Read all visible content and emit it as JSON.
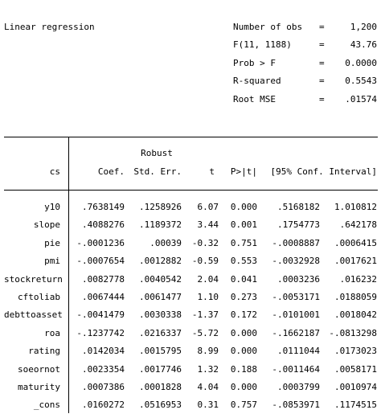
{
  "title": "Linear regression",
  "stats": [
    {
      "label": "Number of obs",
      "eq": "=",
      "value": "1,200"
    },
    {
      "label": "F(11, 1188)",
      "eq": "=",
      "value": "43.76"
    },
    {
      "label": "Prob > F",
      "eq": "=",
      "value": "0.0000"
    },
    {
      "label": "R-squared",
      "eq": "=",
      "value": "0.5543"
    },
    {
      "label": "Root MSE",
      "eq": "=",
      "value": ".01574"
    }
  ],
  "table": {
    "depvar": "cs",
    "robust_label": "Robust",
    "headers": [
      "Coef.",
      "Std. Err.",
      "t",
      "P>|t|",
      "[95% Conf. Interval]"
    ],
    "rows": [
      {
        "name": "y10",
        "coef": ".7638149",
        "se": ".1258926",
        "t": "6.07",
        "p": "0.000",
        "lo": ".5168182",
        "hi": "1.010812"
      },
      {
        "name": "slope",
        "coef": ".4088276",
        "se": ".1189372",
        "t": "3.44",
        "p": "0.001",
        "lo": ".1754773",
        "hi": ".642178"
      },
      {
        "name": "pie",
        "coef": "-.0001236",
        "se": ".00039",
        "t": "-0.32",
        "p": "0.751",
        "lo": "-.0008887",
        "hi": ".0006415"
      },
      {
        "name": "pmi",
        "coef": "-.0007654",
        "se": ".0012882",
        "t": "-0.59",
        "p": "0.553",
        "lo": "-.0032928",
        "hi": ".0017621"
      },
      {
        "name": "stockreturn",
        "coef": ".0082778",
        "se": ".0040542",
        "t": "2.04",
        "p": "0.041",
        "lo": ".0003236",
        "hi": ".016232"
      },
      {
        "name": "cftoliab",
        "coef": ".0067444",
        "se": ".0061477",
        "t": "1.10",
        "p": "0.273",
        "lo": "-.0053171",
        "hi": ".0188059"
      },
      {
        "name": "debttoasset",
        "coef": "-.0041479",
        "se": ".0030338",
        "t": "-1.37",
        "p": "0.172",
        "lo": "-.0101001",
        "hi": ".0018042"
      },
      {
        "name": "roa",
        "coef": "-.1237742",
        "se": ".0216337",
        "t": "-5.72",
        "p": "0.000",
        "lo": "-.1662187",
        "hi": "-.0813298"
      },
      {
        "name": "rating",
        "coef": ".0142034",
        "se": ".0015795",
        "t": "8.99",
        "p": "0.000",
        "lo": ".0111044",
        "hi": ".0173023"
      },
      {
        "name": "soeornot",
        "coef": ".0023354",
        "se": ".0017746",
        "t": "1.32",
        "p": "0.188",
        "lo": "-.0011464",
        "hi": ".0058171"
      },
      {
        "name": "maturity",
        "coef": ".0007386",
        "se": ".0001828",
        "t": "4.04",
        "p": "0.000",
        "lo": ".0003799",
        "hi": ".0010974"
      },
      {
        "name": "_cons",
        "coef": ".0160272",
        "se": ".0516953",
        "t": "0.31",
        "p": "0.757",
        "lo": "-.0853971",
        "hi": ".1174515"
      }
    ]
  }
}
